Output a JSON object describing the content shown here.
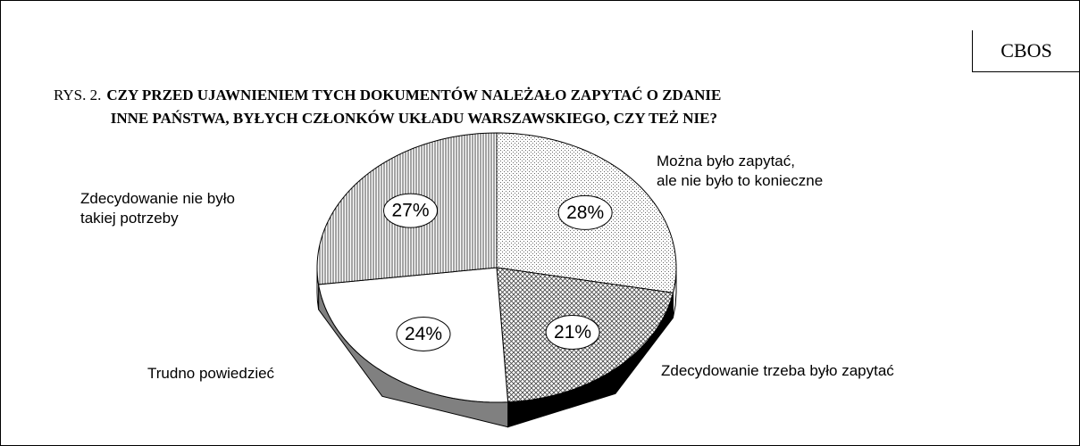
{
  "source": "CBOS",
  "chart_data": {
    "type": "pie3d",
    "title_prefix": "RYS. 2.",
    "title": "CZY PRZED UJAWNIENIEM TYCH DOKUMENTÓW NALEŻAŁO ZAPYTAĆ O ZDANIE\nINNE PAŃSTWA, BYŁYCH CZŁONKÓW UKŁADU WARSZAWSKIEGO, CZY TEŻ NIE?",
    "categories": [
      "Można było zapytać,\nale nie było to konieczne",
      "Zdecydowanie trzeba było zapytać",
      "Trudno powiedzieć",
      "Zdecydowanie nie było\ntakiej potrzeby"
    ],
    "values": [
      28,
      21,
      24,
      27
    ],
    "value_labels": [
      "28%",
      "21%",
      "24%",
      "27%"
    ],
    "patterns": [
      "dots",
      "crosshatch",
      "none",
      "vertical"
    ],
    "side_colors": [
      "#ffffff",
      "#000000",
      "#808080",
      "#ffffff"
    ],
    "start": "top",
    "direction": "clockwise"
  }
}
